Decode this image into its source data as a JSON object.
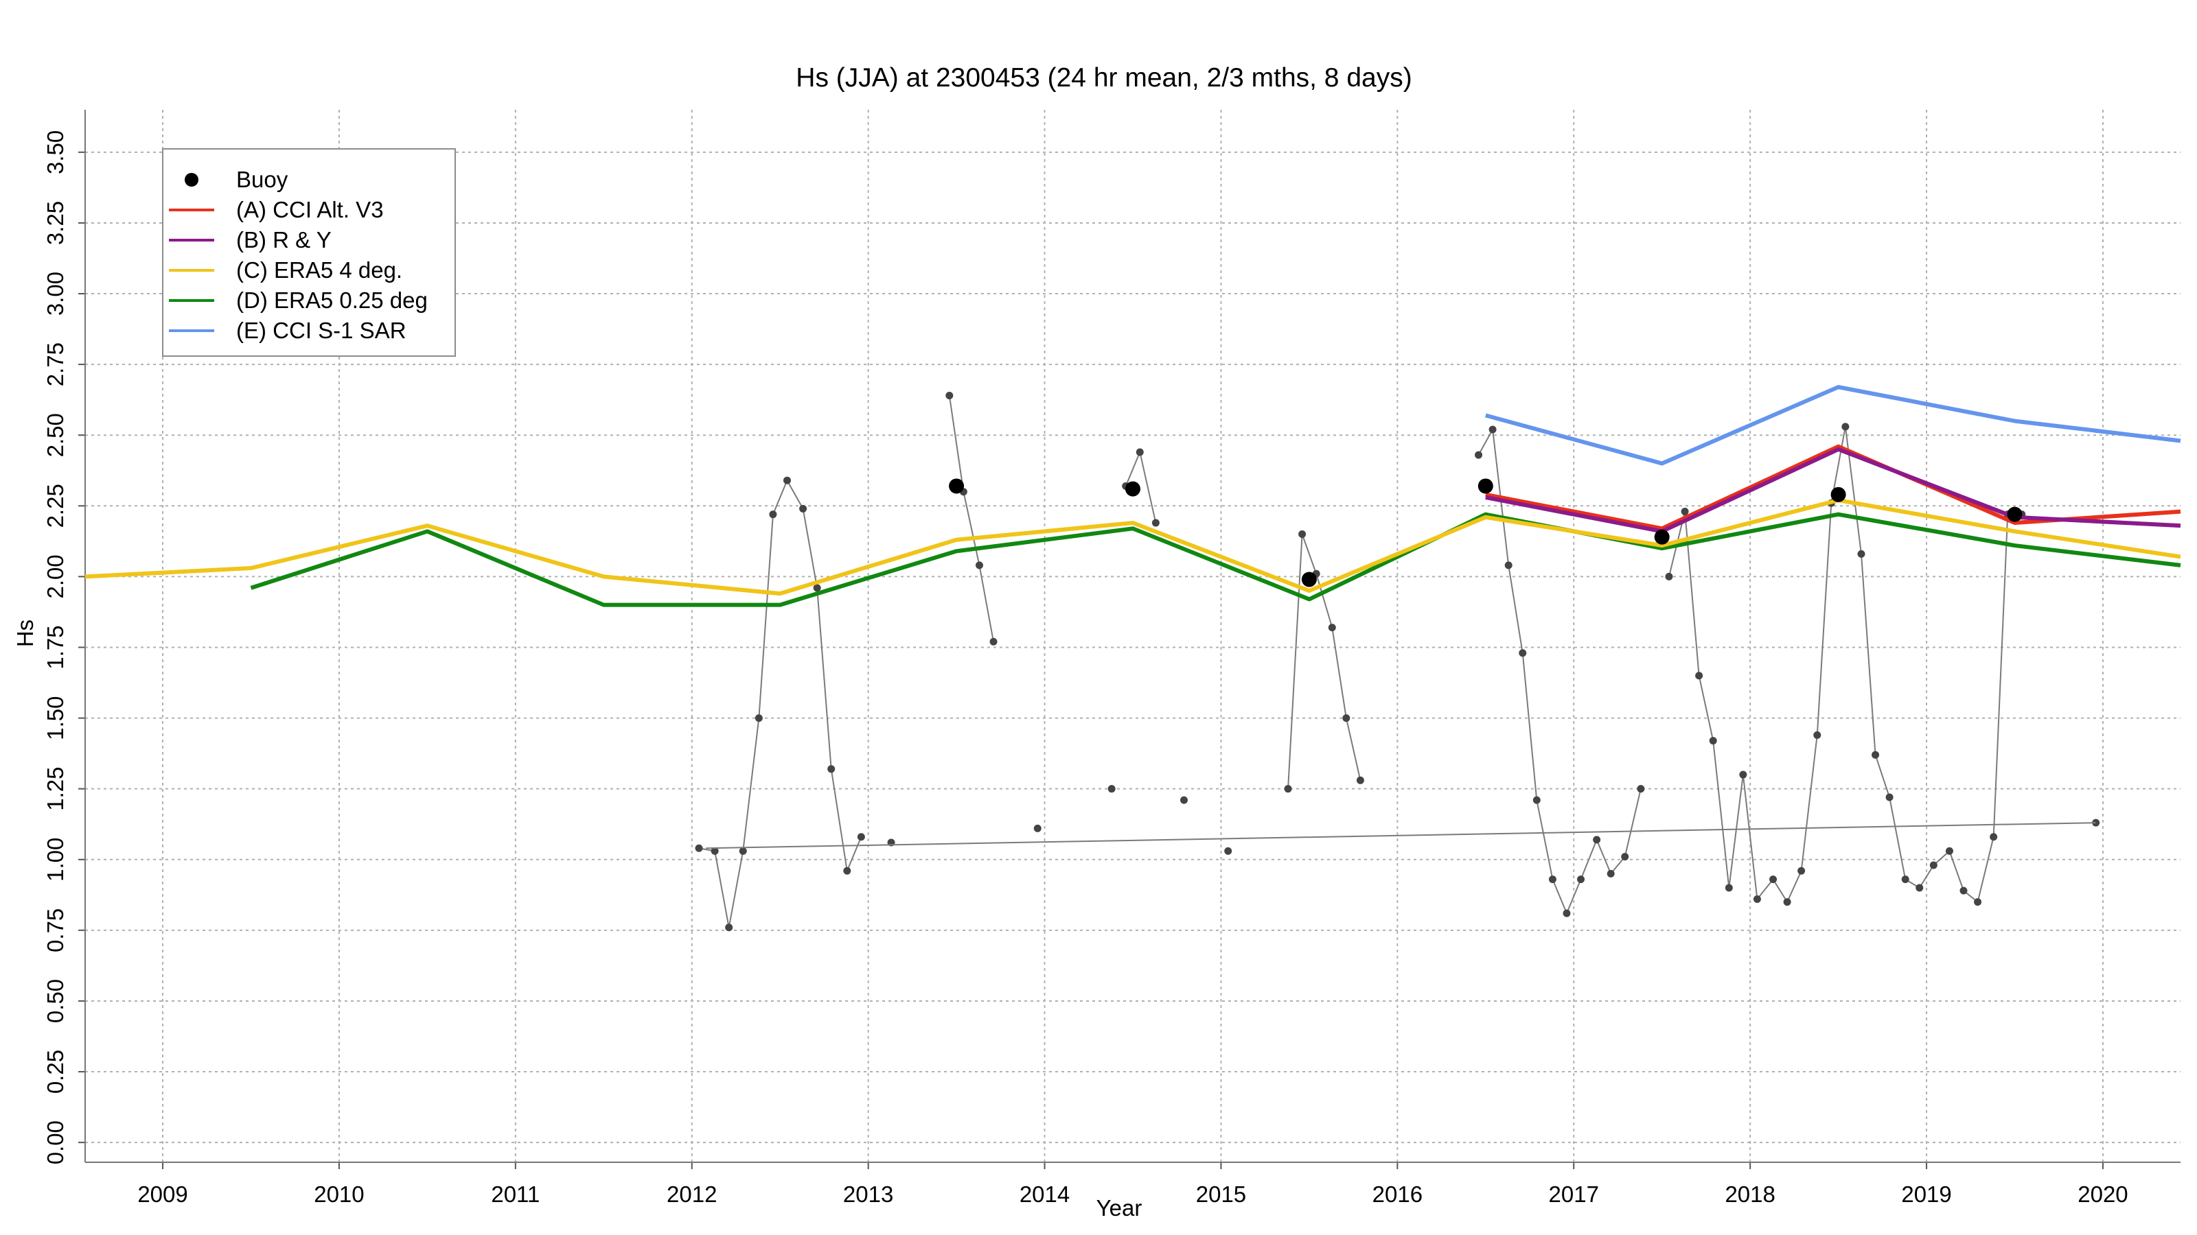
{
  "chart_data": {
    "type": "line",
    "title": "Hs (JJA) at 2300453 (24 hr mean, 2/3 mths, 8 days)",
    "xlabel": "Year",
    "ylabel": "Hs",
    "xlim": [
      2008.56,
      2020.44
    ],
    "ylim": [
      -0.07,
      3.65
    ],
    "x_ticks": [
      "2009",
      "2010",
      "2011",
      "2012",
      "2013",
      "2014",
      "2015",
      "2016",
      "2017",
      "2018",
      "2019",
      "2020"
    ],
    "y_ticks": [
      "0.00",
      "0.25",
      "0.50",
      "0.75",
      "1.00",
      "1.25",
      "1.50",
      "1.75",
      "2.00",
      "2.25",
      "2.50",
      "2.75",
      "3.00",
      "3.25",
      "3.50"
    ],
    "grid": true,
    "legend_position": "top-left",
    "series": [
      {
        "name": "Buoy",
        "kind": "scatter",
        "color": "#000000",
        "points": [
          [
            2013.5,
            2.32
          ],
          [
            2014.5,
            2.31
          ],
          [
            2015.5,
            1.99
          ],
          [
            2016.5,
            2.32
          ],
          [
            2017.5,
            2.14
          ],
          [
            2018.5,
            2.29
          ],
          [
            2019.5,
            2.22
          ]
        ]
      },
      {
        "name": "(A) CCI Alt. V3",
        "kind": "line",
        "color": "#e8311b",
        "points": [
          [
            2016.5,
            2.29
          ],
          [
            2017.5,
            2.17
          ],
          [
            2018.5,
            2.46
          ],
          [
            2019.5,
            2.19
          ],
          [
            2020.44,
            2.23
          ]
        ]
      },
      {
        "name": "(B) R & Y",
        "kind": "line",
        "color": "#8b1a8b",
        "points": [
          [
            2016.5,
            2.28
          ],
          [
            2017.5,
            2.16
          ],
          [
            2018.5,
            2.45
          ],
          [
            2019.5,
            2.21
          ],
          [
            2020.44,
            2.18
          ]
        ]
      },
      {
        "name": "(C) ERA5 4 deg.",
        "kind": "line",
        "color": "#f0c419",
        "points": [
          [
            2008.56,
            2.0
          ],
          [
            2009.5,
            2.03
          ],
          [
            2010.5,
            2.18
          ],
          [
            2011.5,
            2.0
          ],
          [
            2012.5,
            1.94
          ],
          [
            2013.5,
            2.13
          ],
          [
            2014.5,
            2.19
          ],
          [
            2015.5,
            1.95
          ],
          [
            2016.5,
            2.21
          ],
          [
            2017.5,
            2.11
          ],
          [
            2018.5,
            2.27
          ],
          [
            2019.5,
            2.16
          ],
          [
            2020.44,
            2.07
          ]
        ]
      },
      {
        "name": "(D) ERA5 0.25 deg",
        "kind": "line",
        "color": "#118811",
        "points": [
          [
            2009.5,
            1.96
          ],
          [
            2010.5,
            2.16
          ],
          [
            2011.5,
            1.9
          ],
          [
            2012.5,
            1.9
          ],
          [
            2013.5,
            2.09
          ],
          [
            2014.5,
            2.17
          ],
          [
            2015.5,
            1.92
          ],
          [
            2016.5,
            2.22
          ],
          [
            2017.5,
            2.1
          ],
          [
            2018.5,
            2.22
          ],
          [
            2019.5,
            2.11
          ],
          [
            2020.44,
            2.04
          ]
        ]
      },
      {
        "name": "(E) CCI S-1 SAR",
        "kind": "line",
        "color": "#6495ed",
        "points": [
          [
            2016.5,
            2.57
          ],
          [
            2017.5,
            2.4
          ],
          [
            2018.5,
            2.67
          ],
          [
            2019.5,
            2.55
          ],
          [
            2020.44,
            2.48
          ]
        ]
      }
    ],
    "monthly_series": {
      "color": "#555555",
      "segments": [
        [
          [
            2012.04,
            1.04
          ],
          [
            2012.13,
            1.03
          ],
          [
            2012.21,
            0.76
          ],
          [
            2012.29,
            1.03
          ],
          [
            2012.38,
            1.5
          ],
          [
            2012.46,
            2.22
          ],
          [
            2012.54,
            2.34
          ],
          [
            2012.63,
            2.24
          ],
          [
            2012.71,
            1.96
          ],
          [
            2012.79,
            1.32
          ],
          [
            2012.88,
            0.96
          ],
          [
            2012.96,
            1.08
          ]
        ],
        [
          [
            2013.46,
            2.64
          ],
          [
            2013.54,
            2.3
          ],
          [
            2013.63,
            2.04
          ],
          [
            2013.71,
            1.77
          ]
        ],
        [
          [
            2014.38,
            1.25
          ]
        ],
        [
          [
            2014.46,
            2.32
          ],
          [
            2014.54,
            2.44
          ],
          [
            2014.63,
            2.19
          ]
        ],
        [
          [
            2014.79,
            1.21
          ]
        ],
        [
          [
            2015.38,
            1.25
          ],
          [
            2015.46,
            2.15
          ],
          [
            2015.54,
            2.01
          ],
          [
            2015.63,
            1.82
          ],
          [
            2015.71,
            1.5
          ],
          [
            2015.79,
            1.28
          ]
        ],
        [
          [
            2016.46,
            2.43
          ],
          [
            2016.54,
            2.52
          ],
          [
            2016.63,
            2.04
          ],
          [
            2016.71,
            1.73
          ],
          [
            2016.79,
            1.21
          ],
          [
            2016.88,
            0.93
          ],
          [
            2016.96,
            0.81
          ],
          [
            2017.04,
            0.93
          ],
          [
            2017.13,
            1.07
          ],
          [
            2017.21,
            0.95
          ],
          [
            2017.29,
            1.01
          ],
          [
            2017.38,
            1.25
          ]
        ],
        [
          [
            2017.54,
            2.0
          ],
          [
            2017.63,
            2.23
          ],
          [
            2017.71,
            1.65
          ],
          [
            2017.79,
            1.42
          ],
          [
            2017.88,
            0.9
          ],
          [
            2017.96,
            1.3
          ],
          [
            2018.04,
            0.86
          ],
          [
            2018.13,
            0.93
          ],
          [
            2018.21,
            0.85
          ],
          [
            2018.29,
            0.96
          ],
          [
            2018.38,
            1.44
          ],
          [
            2018.46,
            2.26
          ],
          [
            2018.54,
            2.53
          ],
          [
            2018.63,
            2.08
          ],
          [
            2018.71,
            1.37
          ],
          [
            2018.79,
            1.22
          ],
          [
            2018.88,
            0.93
          ],
          [
            2018.96,
            0.9
          ],
          [
            2019.04,
            0.98
          ],
          [
            2019.13,
            1.03
          ],
          [
            2019.21,
            0.89
          ],
          [
            2019.29,
            0.85
          ],
          [
            2019.38,
            1.08
          ],
          [
            2019.46,
            2.22
          ],
          [
            2019.54,
            2.22
          ]
        ]
      ],
      "isolated_points": [
        [
          2013.13,
          1.06
        ],
        [
          2013.96,
          1.11
        ],
        [
          2015.04,
          1.03
        ],
        [
          2019.96,
          1.13
        ]
      ],
      "trend_line": [
        [
          2012.08,
          1.04
        ],
        [
          2019.96,
          1.13
        ]
      ]
    }
  }
}
